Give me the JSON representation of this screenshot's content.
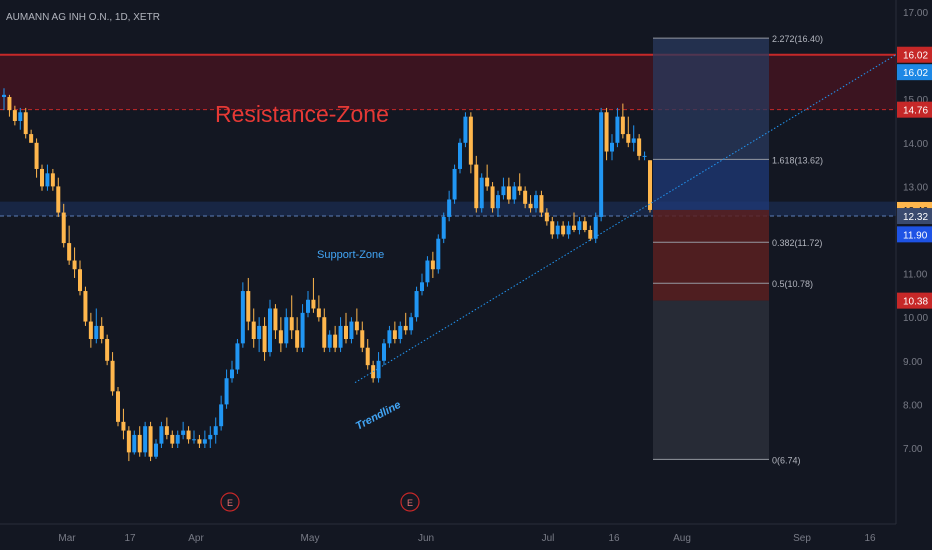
{
  "symbol_title": "AUMANN AG INH O.N., 1D, XETR",
  "colors": {
    "background": "#131722",
    "up": "#2196f3",
    "down": "#ffb74d",
    "resistance": "#c62828",
    "support": "#1e3a6e",
    "trendline": "#2196f3",
    "fib_upper": "#2962ff",
    "fib_lower": "#c62828"
  },
  "annotations": {
    "resistance_label": "Resistance-Zone",
    "support_label": "Support-Zone",
    "trendline_label": "Trendline",
    "earnings_marker": "E"
  },
  "chart_data": {
    "type": "candlestick",
    "ylim": [
      6.5,
      18.0
    ],
    "y_ticks": [
      "17.00",
      "16.00",
      "15.00",
      "14.00",
      "13.00",
      "12.00",
      "11.00",
      "10.00",
      "9.00",
      "8.00",
      "7.00"
    ],
    "x_ticks": [
      "Mar",
      "17",
      "Apr",
      "May",
      "Jun",
      "Jul",
      "16",
      "Aug",
      "Sep",
      "16"
    ],
    "price_tags": [
      {
        "value": "16.02",
        "kind": "resistance"
      },
      {
        "value": "16.02",
        "kind": "trend"
      },
      {
        "value": "14.76",
        "kind": "resistance"
      },
      {
        "value": "12.46",
        "kind": "last"
      },
      {
        "value": "12.32",
        "kind": "support"
      },
      {
        "value": "11.90",
        "kind": "fib"
      },
      {
        "value": "10.38",
        "kind": "fib-red"
      }
    ],
    "fib_levels": [
      {
        "label": "2.272(16.40)",
        "value": 16.4
      },
      {
        "label": "1.618(13.62)",
        "value": 13.62
      },
      {
        "label": "0.382(11.72)",
        "value": 11.72
      },
      {
        "label": "0.5(10.78)",
        "value": 10.78
      },
      {
        "label": "0(6.74)",
        "value": 6.74
      }
    ],
    "resistance_zone": [
      14.76,
      16.02
    ],
    "support_zone": [
      12.32,
      12.65
    ],
    "candles": [
      [
        15.05,
        15.25,
        14.75,
        15.1
      ],
      [
        15.05,
        15.1,
        14.6,
        14.75
      ],
      [
        14.75,
        14.85,
        14.4,
        14.5
      ],
      [
        14.5,
        14.8,
        14.3,
        14.7
      ],
      [
        14.7,
        14.8,
        14.1,
        14.2
      ],
      [
        14.2,
        14.3,
        14.0,
        14.0
      ],
      [
        14.0,
        14.1,
        13.2,
        13.4
      ],
      [
        13.4,
        13.5,
        12.9,
        13.0
      ],
      [
        13.0,
        13.5,
        12.9,
        13.3
      ],
      [
        13.3,
        13.4,
        12.9,
        13.0
      ],
      [
        13.0,
        13.2,
        12.3,
        12.4
      ],
      [
        12.4,
        12.6,
        11.6,
        11.7
      ],
      [
        11.7,
        12.1,
        11.2,
        11.3
      ],
      [
        11.3,
        11.6,
        10.9,
        11.1
      ],
      [
        11.1,
        11.3,
        10.5,
        10.6
      ],
      [
        10.6,
        10.7,
        9.8,
        9.9
      ],
      [
        9.9,
        10.1,
        9.3,
        9.5
      ],
      [
        9.5,
        10.2,
        9.4,
        9.8
      ],
      [
        9.8,
        10.0,
        9.4,
        9.5
      ],
      [
        9.5,
        9.6,
        8.9,
        9.0
      ],
      [
        9.0,
        9.2,
        8.2,
        8.3
      ],
      [
        8.3,
        8.4,
        7.5,
        7.6
      ],
      [
        7.6,
        7.9,
        7.2,
        7.4
      ],
      [
        7.4,
        7.5,
        6.7,
        6.9
      ],
      [
        6.9,
        7.4,
        6.85,
        7.3
      ],
      [
        7.3,
        7.5,
        6.8,
        6.9
      ],
      [
        6.9,
        7.6,
        6.8,
        7.5
      ],
      [
        7.5,
        7.6,
        6.7,
        6.8
      ],
      [
        6.8,
        7.2,
        6.75,
        7.1
      ],
      [
        7.1,
        7.6,
        7.0,
        7.5
      ],
      [
        7.5,
        7.7,
        7.2,
        7.3
      ],
      [
        7.3,
        7.4,
        7.0,
        7.1
      ],
      [
        7.1,
        7.4,
        7.0,
        7.3
      ],
      [
        7.3,
        7.6,
        7.2,
        7.4
      ],
      [
        7.4,
        7.5,
        7.1,
        7.2
      ],
      [
        7.2,
        7.4,
        7.1,
        7.2
      ],
      [
        7.2,
        7.3,
        7.0,
        7.1
      ],
      [
        7.1,
        7.4,
        7.0,
        7.2
      ],
      [
        7.2,
        7.5,
        7.0,
        7.3
      ],
      [
        7.3,
        7.7,
        7.1,
        7.5
      ],
      [
        7.5,
        8.2,
        7.4,
        8.0
      ],
      [
        8.0,
        8.8,
        7.9,
        8.6
      ],
      [
        8.6,
        9.0,
        8.5,
        8.8
      ],
      [
        8.8,
        9.5,
        8.7,
        9.4
      ],
      [
        9.4,
        10.8,
        9.3,
        10.6
      ],
      [
        10.6,
        10.9,
        9.7,
        9.9
      ],
      [
        9.9,
        10.2,
        9.3,
        9.5
      ],
      [
        9.5,
        10.0,
        9.2,
        9.8
      ],
      [
        9.8,
        10.0,
        9.0,
        9.2
      ],
      [
        9.2,
        10.4,
        9.1,
        10.2
      ],
      [
        10.2,
        10.3,
        9.5,
        9.7
      ],
      [
        9.7,
        10.0,
        9.2,
        9.4
      ],
      [
        9.4,
        10.2,
        9.3,
        10.0
      ],
      [
        10.0,
        10.5,
        9.5,
        9.7
      ],
      [
        9.7,
        10.0,
        9.2,
        9.3
      ],
      [
        9.3,
        10.3,
        9.2,
        10.1
      ],
      [
        10.1,
        10.6,
        10.0,
        10.4
      ],
      [
        10.4,
        10.9,
        10.1,
        10.2
      ],
      [
        10.2,
        10.5,
        9.9,
        10.0
      ],
      [
        10.0,
        10.2,
        9.2,
        9.3
      ],
      [
        9.3,
        9.7,
        9.2,
        9.6
      ],
      [
        9.6,
        9.8,
        9.2,
        9.3
      ],
      [
        9.3,
        10.0,
        9.2,
        9.8
      ],
      [
        9.8,
        10.1,
        9.4,
        9.5
      ],
      [
        9.5,
        10.0,
        9.4,
        9.9
      ],
      [
        9.9,
        10.2,
        9.6,
        9.7
      ],
      [
        9.7,
        9.9,
        9.2,
        9.3
      ],
      [
        9.3,
        9.5,
        8.8,
        8.9
      ],
      [
        8.9,
        9.0,
        8.5,
        8.6
      ],
      [
        8.6,
        9.2,
        8.5,
        9.0
      ],
      [
        9.0,
        9.5,
        8.9,
        9.4
      ],
      [
        9.4,
        9.8,
        9.3,
        9.7
      ],
      [
        9.7,
        9.9,
        9.4,
        9.5
      ],
      [
        9.5,
        9.9,
        9.4,
        9.8
      ],
      [
        9.8,
        10.1,
        9.6,
        9.7
      ],
      [
        9.7,
        10.1,
        9.6,
        10.0
      ],
      [
        10.0,
        10.7,
        9.9,
        10.6
      ],
      [
        10.6,
        11.0,
        10.5,
        10.8
      ],
      [
        10.8,
        11.4,
        10.7,
        11.3
      ],
      [
        11.3,
        11.5,
        10.9,
        11.1
      ],
      [
        11.1,
        11.9,
        11.0,
        11.8
      ],
      [
        11.8,
        12.4,
        11.7,
        12.3
      ],
      [
        12.3,
        12.9,
        12.2,
        12.7
      ],
      [
        12.7,
        13.5,
        12.6,
        13.4
      ],
      [
        13.4,
        14.1,
        13.3,
        14.0
      ],
      [
        14.0,
        14.7,
        13.9,
        14.6
      ],
      [
        14.6,
        14.7,
        13.3,
        13.5
      ],
      [
        13.5,
        13.7,
        12.4,
        12.5
      ],
      [
        12.5,
        13.3,
        12.4,
        13.2
      ],
      [
        13.2,
        13.5,
        12.9,
        13.0
      ],
      [
        13.0,
        13.1,
        12.4,
        12.5
      ],
      [
        12.5,
        12.9,
        12.3,
        12.8
      ],
      [
        12.8,
        13.2,
        12.7,
        13.0
      ],
      [
        13.0,
        13.2,
        12.6,
        12.7
      ],
      [
        12.7,
        13.1,
        12.6,
        13.0
      ],
      [
        13.0,
        13.3,
        12.8,
        12.9
      ],
      [
        12.9,
        13.0,
        12.5,
        12.6
      ],
      [
        12.6,
        12.8,
        12.4,
        12.5
      ],
      [
        12.5,
        12.9,
        12.4,
        12.8
      ],
      [
        12.8,
        12.9,
        12.3,
        12.4
      ],
      [
        12.4,
        12.5,
        12.1,
        12.2
      ],
      [
        12.2,
        12.3,
        11.8,
        11.9
      ],
      [
        11.9,
        12.2,
        11.8,
        12.1
      ],
      [
        12.1,
        12.2,
        11.85,
        11.9
      ],
      [
        11.9,
        12.2,
        11.8,
        12.1
      ],
      [
        12.1,
        12.4,
        11.95,
        12.0
      ],
      [
        12.0,
        12.3,
        11.9,
        12.2
      ],
      [
        12.2,
        12.3,
        11.95,
        12.0
      ],
      [
        12.0,
        12.1,
        11.75,
        11.8
      ],
      [
        11.8,
        12.4,
        11.7,
        12.3
      ],
      [
        12.3,
        14.8,
        12.2,
        14.7
      ],
      [
        14.7,
        14.8,
        13.6,
        13.8
      ],
      [
        13.8,
        14.2,
        13.6,
        14.0
      ],
      [
        14.0,
        14.8,
        13.9,
        14.6
      ],
      [
        14.6,
        14.9,
        14.1,
        14.2
      ],
      [
        14.2,
        14.6,
        13.9,
        14.0
      ],
      [
        14.0,
        14.4,
        13.8,
        14.1
      ],
      [
        14.1,
        14.2,
        13.6,
        13.7
      ],
      [
        13.7,
        13.8,
        13.6,
        13.7
      ],
      [
        13.6,
        13.6,
        12.4,
        12.46
      ]
    ]
  }
}
